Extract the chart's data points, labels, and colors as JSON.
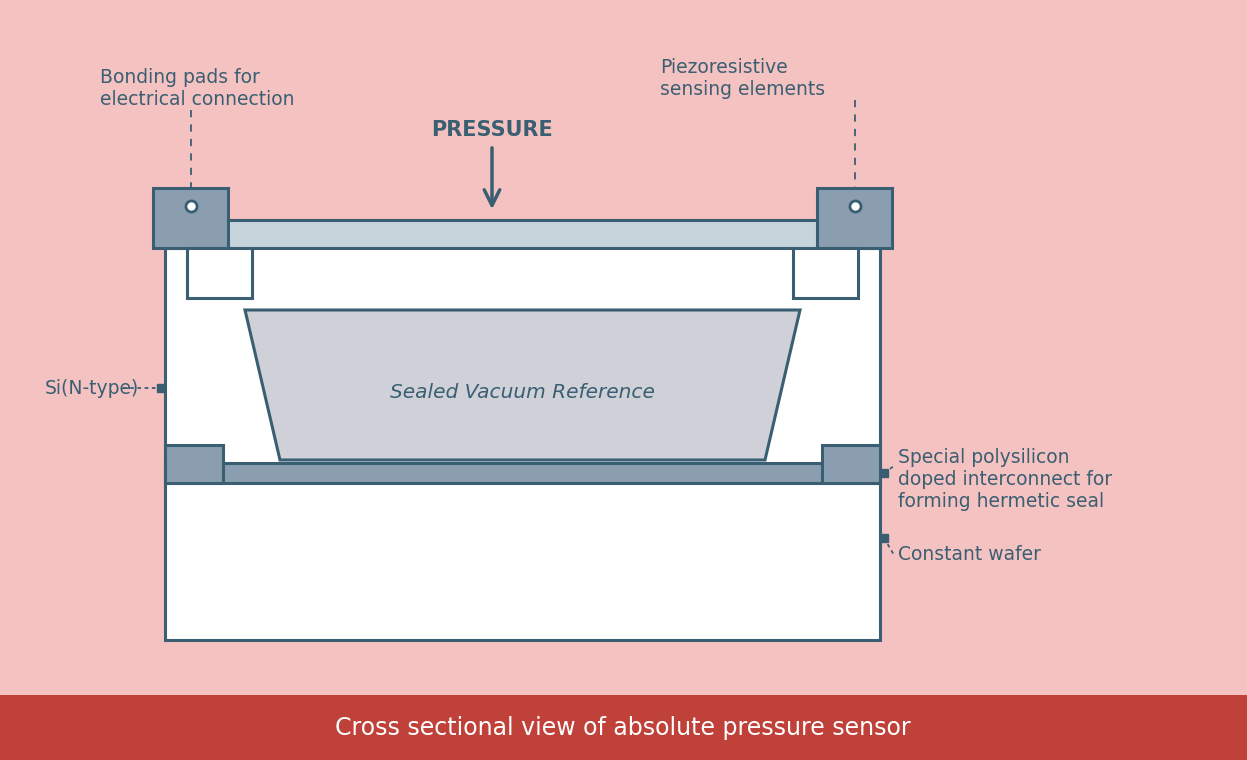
{
  "bg_color": "#f5c2c2",
  "footer_color": "#c0413a",
  "footer_text": "Cross sectional view of absolute pressure sensor",
  "footer_text_color": "#ffffff",
  "dc": "#3a5f72",
  "diagram_fill": "#ffffff",
  "sealed_fill": "#d0d0d8",
  "pad_fill": "#8a9eb0",
  "cap_fill": "#c8d4dc",
  "bar_fill": "#8a9eb0",
  "pressure_text": "PRESSURE",
  "labels": {
    "bonding_pads": "Bonding pads for\nelectrical connection",
    "piezoresistive": "Piezoresistive\nsensing elements",
    "si_ntype": "Si(N-type)",
    "sealed_vacuum": "Sealed Vacuum Reference",
    "special_poly": "Special polysilicon\ndoped interconnect for\nforming hermetic seal",
    "constant_wafer": "Constant wafer"
  },
  "label_fontsize": 13.5,
  "pressure_fontsize": 15,
  "footer_fontsize": 17
}
